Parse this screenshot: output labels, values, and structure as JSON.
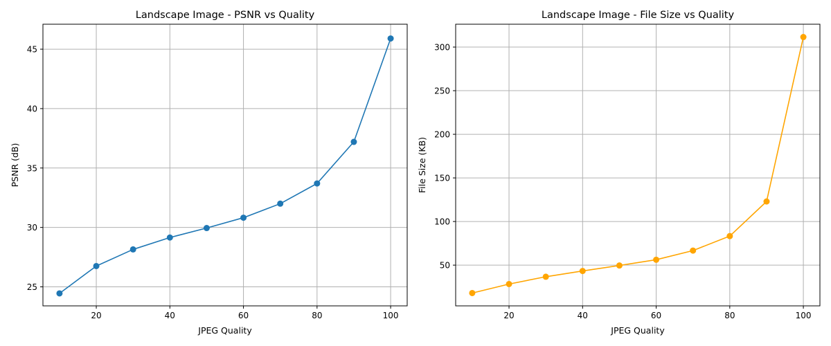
{
  "chart_data": [
    {
      "type": "line",
      "title": "Landscape Image - PSNR vs Quality",
      "xlabel": "JPEG Quality",
      "ylabel": "PSNR (dB)",
      "x": [
        10,
        20,
        30,
        40,
        50,
        60,
        70,
        80,
        90,
        100
      ],
      "series": [
        {
          "values": [
            24.45,
            26.75,
            28.15,
            29.15,
            29.95,
            30.82,
            32.0,
            33.7,
            37.2,
            45.9
          ],
          "color": "#1f77b4",
          "marker": "circle"
        }
      ],
      "xlim": [
        5.5,
        104.5
      ],
      "ylim": [
        23.4,
        47.1
      ],
      "xticks": [
        20,
        40,
        60,
        80,
        100
      ],
      "yticks": [
        25,
        30,
        35,
        40,
        45
      ],
      "grid": true
    },
    {
      "type": "line",
      "title": "Landscape Image - File Size vs Quality",
      "xlabel": "JPEG Quality",
      "ylabel": "File Size (KB)",
      "x": [
        10,
        20,
        30,
        40,
        50,
        60,
        70,
        80,
        90,
        100
      ],
      "series": [
        {
          "values": [
            18,
            28.3,
            36.7,
            43.3,
            49.6,
            56.2,
            66.7,
            83.3,
            123.0,
            311.5
          ],
          "color": "#ffa500",
          "marker": "circle"
        }
      ],
      "xlim": [
        5.5,
        104.5
      ],
      "ylim": [
        3.3,
        326.2
      ],
      "xticks": [
        20,
        40,
        60,
        80,
        100
      ],
      "yticks": [
        50,
        100,
        150,
        200,
        250,
        300
      ],
      "grid": true
    }
  ]
}
